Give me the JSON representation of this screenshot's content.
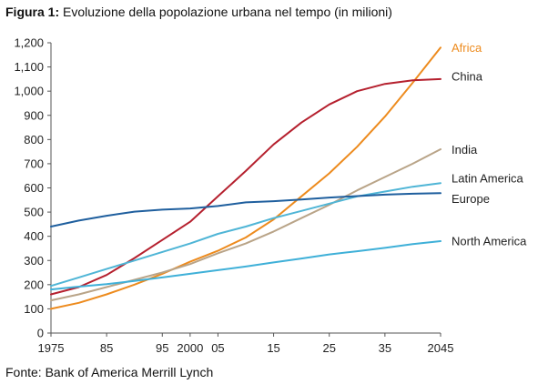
{
  "caption": {
    "label": "Figura 1",
    "separator": ":",
    "text": " Evoluzione della popolazione urbana nel tempo (in milioni)"
  },
  "source": "Fonte: Bank of America Merrill Lynch",
  "chart_data": {
    "type": "line",
    "title": "",
    "xlabel": "",
    "ylabel": "",
    "ylim": [
      0,
      1200
    ],
    "xlim": [
      1975,
      2045
    ],
    "grid": false,
    "legend_placement": "right, labels at line ends",
    "x_tick_values": [
      1975,
      1985,
      1995,
      2000,
      2005,
      2015,
      2025,
      2035,
      2045
    ],
    "x_tick_labels": [
      "1975",
      "85",
      "95",
      "2000",
      "05",
      "15",
      "25",
      "35",
      "2045"
    ],
    "y_tick_values": [
      0,
      100,
      200,
      300,
      400,
      500,
      600,
      700,
      800,
      900,
      1000,
      1100,
      1200
    ],
    "y_tick_labels": [
      "0",
      "100",
      "200",
      "300",
      "400",
      "500",
      "600",
      "700",
      "800",
      "900",
      "1,000",
      "1,100",
      "1,200"
    ],
    "x": [
      1975,
      1980,
      1985,
      1990,
      1995,
      2000,
      2005,
      2010,
      2015,
      2020,
      2025,
      2030,
      2035,
      2040,
      2045
    ],
    "series": [
      {
        "name": "Africa",
        "color": "#ED8B1E",
        "label_value": 1180,
        "values": [
          100,
          125,
          160,
          200,
          245,
          295,
          340,
          395,
          470,
          565,
          660,
          770,
          895,
          1035,
          1180
        ]
      },
      {
        "name": "China",
        "color": "#B5202E",
        "label_value": 1060,
        "values": [
          160,
          190,
          240,
          310,
          385,
          460,
          565,
          670,
          780,
          870,
          945,
          1000,
          1030,
          1045,
          1050
        ]
      },
      {
        "name": "India",
        "color": "#B9A488",
        "label_value": 758,
        "values": [
          135,
          160,
          190,
          220,
          250,
          285,
          330,
          370,
          420,
          475,
          530,
          590,
          645,
          700,
          760
        ]
      },
      {
        "name": "Latin America",
        "color": "#4FB5D6",
        "label_value": 640,
        "values": [
          195,
          230,
          265,
          300,
          335,
          370,
          410,
          440,
          475,
          505,
          535,
          565,
          585,
          605,
          620
        ]
      },
      {
        "name": "Europe",
        "color": "#1F5F9E",
        "label_value": 555,
        "values": [
          440,
          465,
          485,
          502,
          510,
          515,
          525,
          540,
          545,
          552,
          560,
          566,
          572,
          576,
          578
        ]
      },
      {
        "name": "North America",
        "color": "#3FB0D8",
        "label_value": 380,
        "values": [
          180,
          192,
          202,
          215,
          230,
          245,
          260,
          275,
          292,
          308,
          325,
          338,
          352,
          368,
          380
        ]
      }
    ]
  }
}
